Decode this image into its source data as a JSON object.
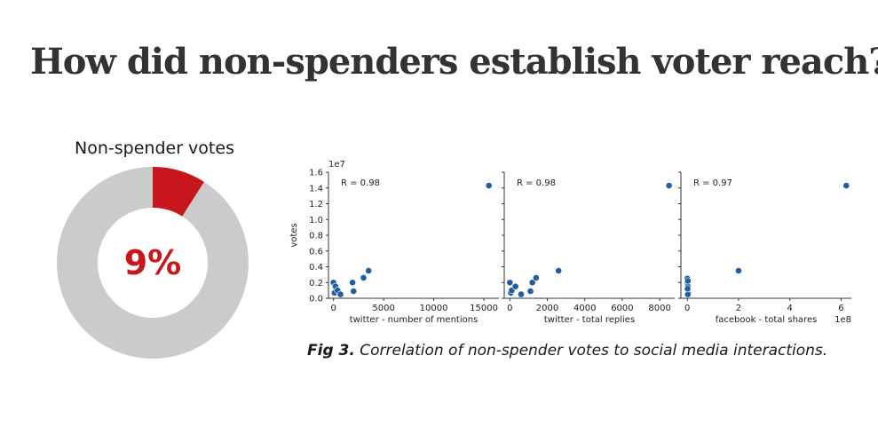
{
  "slide": {
    "title": "How did non-spenders establish voter reach?"
  },
  "donut": {
    "title": "Non-spender votes",
    "percent_label": "9%",
    "share": 0.09,
    "colors": {
      "highlight": "#c8161d",
      "rest": "#cbcbcb"
    }
  },
  "caption": {
    "prefix": "Fig 3.",
    "text": "Correlation of non-spender votes to social media interactions."
  },
  "chart_data": [
    {
      "type": "scatter",
      "xlabel": "twitter - number of mentions",
      "ylabel": "votes",
      "y_scale_label": "1e7",
      "x_scale_label": "",
      "annotation": "R = 0.98",
      "xlim": [
        -500,
        16500
      ],
      "ylim": [
        0,
        1.6
      ],
      "x_ticks": [
        "0",
        "5000",
        "10000",
        "15000"
      ],
      "x_tick_values": [
        0,
        5000,
        10000,
        15000
      ],
      "y_ticks": [
        "0.0",
        "0.2",
        "0.4",
        "0.6",
        "0.8",
        "1.0",
        "1.2",
        "1.4",
        "1.6"
      ],
      "y_tick_values": [
        0,
        0.2,
        0.4,
        0.6,
        0.8,
        1.0,
        1.2,
        1.4,
        1.6
      ],
      "x": [
        0,
        100,
        200,
        400,
        700,
        1900,
        2000,
        3000,
        3500,
        15500
      ],
      "y": [
        0.2,
        0.07,
        0.15,
        0.1,
        0.05,
        0.2,
        0.09,
        0.26,
        0.35,
        1.43
      ]
    },
    {
      "type": "scatter",
      "xlabel": "twitter - total replies",
      "ylabel": "",
      "y_scale_label": "",
      "x_scale_label": "",
      "annotation": "R = 0.98",
      "xlim": [
        -300,
        8800
      ],
      "ylim": [
        0,
        1.6
      ],
      "x_ticks": [
        "0",
        "2000",
        "4000",
        "6000",
        "8000"
      ],
      "x_tick_values": [
        0,
        2000,
        4000,
        6000,
        8000
      ],
      "y_ticks": [],
      "y_tick_values": [
        0,
        0.2,
        0.4,
        0.6,
        0.8,
        1.0,
        1.2,
        1.4,
        1.6
      ],
      "x": [
        0,
        50,
        100,
        300,
        600,
        1100,
        1200,
        1400,
        2600,
        8500
      ],
      "y": [
        0.2,
        0.07,
        0.1,
        0.15,
        0.05,
        0.09,
        0.2,
        0.26,
        0.35,
        1.43
      ]
    },
    {
      "type": "scatter",
      "xlabel": "facebook - total shares",
      "ylabel": "",
      "y_scale_label": "",
      "x_scale_label": "1e8",
      "annotation": "R = 0.97",
      "xlim": [
        -0.25,
        6.4
      ],
      "ylim": [
        0,
        1.6
      ],
      "x_ticks": [
        "0",
        "2",
        "4",
        "6"
      ],
      "x_tick_values": [
        0,
        2,
        4,
        6
      ],
      "y_ticks": [],
      "y_tick_values": [
        0,
        0.2,
        0.4,
        0.6,
        0.8,
        1.0,
        1.2,
        1.4,
        1.6
      ],
      "x": [
        0,
        0.01,
        0.02,
        0.01,
        0.03,
        0.02,
        0.01,
        0.02,
        2.0,
        6.2
      ],
      "y": [
        0.25,
        0.2,
        0.15,
        0.1,
        0.07,
        0.05,
        0.12,
        0.22,
        0.35,
        1.43
      ]
    }
  ]
}
